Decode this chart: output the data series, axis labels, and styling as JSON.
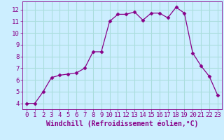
{
  "x": [
    0,
    1,
    2,
    3,
    4,
    5,
    6,
    7,
    8,
    9,
    10,
    11,
    12,
    13,
    14,
    15,
    16,
    17,
    18,
    19,
    20,
    21,
    22,
    23
  ],
  "y": [
    4.0,
    4.0,
    5.0,
    6.2,
    6.4,
    6.5,
    6.6,
    7.0,
    8.4,
    8.4,
    11.0,
    11.6,
    11.6,
    11.8,
    11.1,
    11.7,
    11.7,
    11.3,
    12.2,
    11.7,
    8.3,
    7.2,
    6.3,
    4.7
  ],
  "line_color": "#880088",
  "marker": "D",
  "marker_size": 2.5,
  "bg_color": "#cceeff",
  "grid_color": "#aadddd",
  "xlabel": "Windchill (Refroidissement éolien,°C)",
  "xlabel_color": "#880088",
  "xlabel_fontsize": 7,
  "tick_color": "#880088",
  "tick_fontsize": 6.5,
  "ylim": [
    3.5,
    12.7
  ],
  "xlim": [
    -0.5,
    23.5
  ],
  "yticks": [
    4,
    5,
    6,
    7,
    8,
    9,
    10,
    11,
    12
  ],
  "xticks": [
    0,
    1,
    2,
    3,
    4,
    5,
    6,
    7,
    8,
    9,
    10,
    11,
    12,
    13,
    14,
    15,
    16,
    17,
    18,
    19,
    20,
    21,
    22,
    23
  ]
}
